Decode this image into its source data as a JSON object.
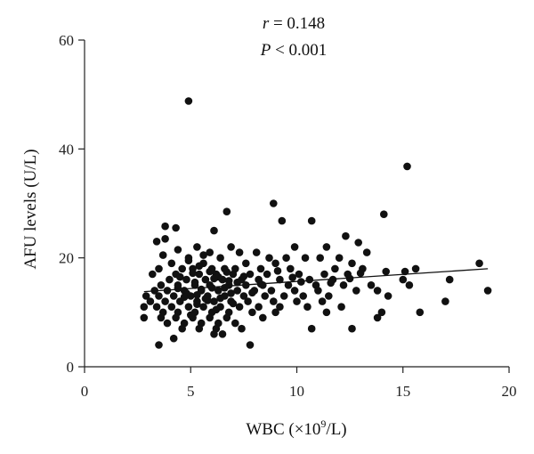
{
  "chart_data": {
    "type": "scatter",
    "xlabel": {
      "prefix": "WBC (×10",
      "sup": "9",
      "suffix": "/L)"
    },
    "ylabel": "AFU levels (U/L)",
    "xlim": [
      0,
      20
    ],
    "ylim": [
      0,
      60
    ],
    "xticks": [
      0,
      5,
      10,
      15,
      20
    ],
    "yticks": [
      0,
      20,
      40,
      60
    ],
    "grid": false,
    "annotations": {
      "r_symbol": "r",
      "r_text": " = 0.148",
      "p_symbol": "P",
      "p_text": " < 0.001"
    },
    "regression": {
      "x": [
        2.8,
        19.0
      ],
      "y": [
        13.8,
        18.0
      ]
    },
    "points": [
      [
        4.9,
        48.8
      ],
      [
        15.2,
        36.8
      ],
      [
        8.9,
        30
      ],
      [
        14.1,
        28
      ],
      [
        6.7,
        28.5
      ],
      [
        9.3,
        26.8
      ],
      [
        10.7,
        26.8
      ],
      [
        3.8,
        25.8
      ],
      [
        4.3,
        25.5
      ],
      [
        6.1,
        25
      ],
      [
        12.3,
        24
      ],
      [
        3.4,
        23
      ],
      [
        3.8,
        23.5
      ],
      [
        12.9,
        22.8
      ],
      [
        9.9,
        22
      ],
      [
        5.3,
        22
      ],
      [
        6.9,
        22
      ],
      [
        11.4,
        22
      ],
      [
        4.4,
        21.5
      ],
      [
        5.9,
        21
      ],
      [
        7.3,
        21
      ],
      [
        8.1,
        21
      ],
      [
        13.3,
        21
      ],
      [
        3.7,
        20.5
      ],
      [
        4.9,
        20
      ],
      [
        6.4,
        20
      ],
      [
        8.7,
        20
      ],
      [
        9.5,
        20
      ],
      [
        10.4,
        20
      ],
      [
        11.1,
        20
      ],
      [
        12.0,
        20
      ],
      [
        4.1,
        19
      ],
      [
        5.6,
        19
      ],
      [
        7.6,
        19
      ],
      [
        9.0,
        19
      ],
      [
        12.6,
        19
      ],
      [
        14.2,
        17.5
      ],
      [
        15.6,
        18
      ],
      [
        18.6,
        19
      ],
      [
        3.5,
        18
      ],
      [
        4.6,
        18
      ],
      [
        5.1,
        18
      ],
      [
        6.0,
        18
      ],
      [
        6.6,
        18
      ],
      [
        7.1,
        18
      ],
      [
        8.3,
        18
      ],
      [
        9.7,
        18
      ],
      [
        11.8,
        18
      ],
      [
        13.1,
        18
      ],
      [
        15.1,
        17.5
      ],
      [
        3.2,
        17
      ],
      [
        4.3,
        17
      ],
      [
        5.4,
        17
      ],
      [
        6.2,
        17
      ],
      [
        7.0,
        17
      ],
      [
        7.8,
        17
      ],
      [
        8.6,
        17
      ],
      [
        10.1,
        17
      ],
      [
        11.3,
        17
      ],
      [
        12.4,
        17
      ],
      [
        4.0,
        16
      ],
      [
        4.8,
        16
      ],
      [
        5.7,
        16
      ],
      [
        6.5,
        16
      ],
      [
        7.4,
        16
      ],
      [
        8.2,
        16
      ],
      [
        9.2,
        16
      ],
      [
        10.6,
        16
      ],
      [
        11.7,
        16
      ],
      [
        15.0,
        16
      ],
      [
        17.2,
        16
      ],
      [
        3.6,
        15
      ],
      [
        4.4,
        15
      ],
      [
        5.2,
        15
      ],
      [
        5.9,
        15
      ],
      [
        6.8,
        15
      ],
      [
        7.6,
        15
      ],
      [
        8.4,
        15
      ],
      [
        9.6,
        15
      ],
      [
        10.9,
        15
      ],
      [
        12.2,
        15
      ],
      [
        13.5,
        15
      ],
      [
        15.3,
        15
      ],
      [
        3.3,
        14
      ],
      [
        3.9,
        14
      ],
      [
        4.7,
        14
      ],
      [
        5.5,
        14
      ],
      [
        6.3,
        14
      ],
      [
        7.2,
        14
      ],
      [
        8.0,
        14
      ],
      [
        8.8,
        14
      ],
      [
        9.9,
        14
      ],
      [
        11.0,
        14
      ],
      [
        12.8,
        14
      ],
      [
        13.8,
        14
      ],
      [
        19.0,
        14
      ],
      [
        2.9,
        13
      ],
      [
        3.5,
        13
      ],
      [
        4.2,
        13
      ],
      [
        5.0,
        13
      ],
      [
        5.8,
        13
      ],
      [
        6.6,
        13
      ],
      [
        7.5,
        13
      ],
      [
        8.5,
        13
      ],
      [
        9.4,
        13
      ],
      [
        10.3,
        13
      ],
      [
        11.5,
        13
      ],
      [
        14.3,
        13
      ],
      [
        3.1,
        12
      ],
      [
        3.8,
        12
      ],
      [
        4.5,
        12
      ],
      [
        5.3,
        12
      ],
      [
        6.1,
        12
      ],
      [
        6.9,
        12
      ],
      [
        7.7,
        12
      ],
      [
        8.9,
        12
      ],
      [
        10.0,
        12
      ],
      [
        11.2,
        12
      ],
      [
        17.0,
        12
      ],
      [
        2.8,
        11
      ],
      [
        3.4,
        11
      ],
      [
        4.1,
        11
      ],
      [
        4.9,
        11
      ],
      [
        5.6,
        11
      ],
      [
        6.4,
        11
      ],
      [
        7.3,
        11
      ],
      [
        8.2,
        11
      ],
      [
        9.2,
        11
      ],
      [
        10.5,
        11
      ],
      [
        12.1,
        11
      ],
      [
        3.7,
        10
      ],
      [
        4.4,
        10
      ],
      [
        5.2,
        10
      ],
      [
        6.0,
        10
      ],
      [
        6.8,
        10
      ],
      [
        7.9,
        10
      ],
      [
        9.0,
        10
      ],
      [
        11.4,
        10
      ],
      [
        14.0,
        10
      ],
      [
        15.8,
        10
      ],
      [
        2.8,
        9
      ],
      [
        3.6,
        9
      ],
      [
        4.3,
        9
      ],
      [
        5.1,
        9
      ],
      [
        5.9,
        9
      ],
      [
        6.7,
        9
      ],
      [
        8.4,
        9
      ],
      [
        13.8,
        9
      ],
      [
        3.9,
        8
      ],
      [
        4.7,
        8
      ],
      [
        5.5,
        8
      ],
      [
        6.3,
        8
      ],
      [
        7.1,
        8
      ],
      [
        4.6,
        7
      ],
      [
        5.4,
        7
      ],
      [
        6.2,
        7
      ],
      [
        7.4,
        7
      ],
      [
        10.7,
        7
      ],
      [
        12.6,
        7
      ],
      [
        6.1,
        6
      ],
      [
        6.5,
        6
      ],
      [
        3.5,
        4
      ],
      [
        7.8,
        4
      ],
      [
        4.2,
        5.2
      ],
      [
        5.0,
        9.5
      ],
      [
        5.7,
        12.5
      ],
      [
        6.0,
        14.5
      ],
      [
        6.3,
        16.5
      ],
      [
        5.4,
        18.5
      ],
      [
        4.8,
        13.5
      ],
      [
        5.2,
        15.5
      ],
      [
        6.6,
        14.5
      ],
      [
        5.9,
        17.5
      ],
      [
        4.5,
        16.5
      ],
      [
        5.3,
        11.5
      ],
      [
        6.9,
        13.5
      ],
      [
        7.2,
        15.5
      ],
      [
        5.6,
        20.5
      ],
      [
        6.2,
        10.5
      ],
      [
        4.9,
        19.5
      ],
      [
        5.8,
        12.2
      ],
      [
        6.1,
        16.2
      ],
      [
        5.5,
        14.2
      ],
      [
        4.7,
        12.8
      ],
      [
        6.4,
        12.6
      ],
      [
        5.1,
        17.2
      ],
      [
        6.7,
        17.4
      ],
      [
        7.0,
        11.6
      ],
      [
        7.5,
        16.6
      ],
      [
        4.4,
        14.4
      ],
      [
        5.3,
        13.2
      ],
      [
        6.8,
        15.8
      ],
      [
        7.9,
        13.6
      ],
      [
        8.3,
        15.2
      ],
      [
        9.1,
        17.6
      ],
      [
        9.8,
        16.4
      ],
      [
        10.2,
        15.6
      ],
      [
        11.6,
        15.4
      ],
      [
        12.5,
        16.2
      ],
      [
        13.0,
        17.2
      ]
    ]
  }
}
